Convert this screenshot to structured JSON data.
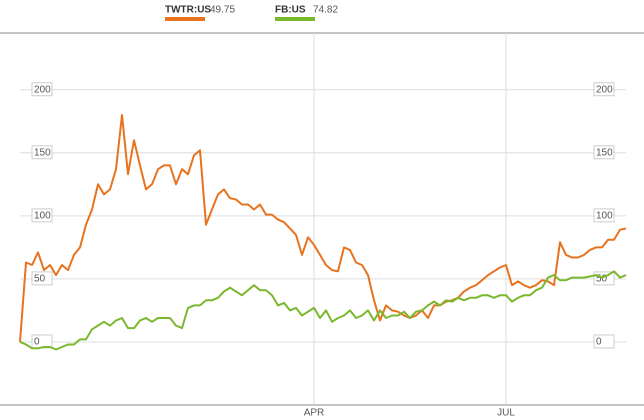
{
  "chart_data": {
    "type": "line",
    "categories": [
      null,
      null,
      null,
      null,
      null,
      null,
      null,
      null,
      null,
      null,
      null,
      null,
      null,
      null,
      null,
      null,
      null,
      null,
      null,
      null,
      null,
      null,
      null,
      null,
      null,
      null,
      null,
      null,
      null,
      null,
      null,
      null,
      null,
      null,
      null,
      null,
      null,
      null,
      null,
      null,
      null,
      null,
      null,
      null,
      null,
      null,
      null,
      null,
      null,
      "APR",
      null,
      null,
      null,
      null,
      null,
      null,
      null,
      null,
      null,
      null,
      null,
      null,
      null,
      null,
      null,
      null,
      null,
      null,
      null,
      null,
      null,
      null,
      null,
      null,
      null,
      null,
      null,
      null,
      null,
      null,
      null,
      "JUL",
      null,
      null,
      null,
      null,
      null,
      null,
      null,
      null,
      null,
      null,
      null,
      null,
      null,
      null,
      null,
      null,
      null,
      null,
      null,
      null
    ],
    "series": [
      {
        "name": "TWTR:US",
        "legend_value": "49.75",
        "color": "#e8731f",
        "values": [
          0,
          63,
          61,
          71,
          57,
          61,
          53,
          61,
          57,
          69,
          75,
          93,
          105,
          125,
          117,
          121,
          137,
          180,
          133,
          160,
          140,
          121,
          125,
          137,
          140,
          140,
          125,
          137,
          133,
          148,
          152,
          93,
          105,
          117,
          121,
          114,
          113,
          109,
          109,
          105,
          109,
          101,
          101,
          97,
          95,
          90,
          85,
          69,
          83,
          77,
          69,
          61,
          57,
          56,
          75,
          73,
          63,
          61,
          53,
          33,
          17,
          29,
          25,
          24,
          21,
          19,
          21,
          25,
          19,
          29,
          29,
          32,
          33,
          35,
          40,
          43,
          45,
          49,
          53,
          56,
          59,
          61,
          45,
          48,
          45,
          43,
          45,
          49,
          48,
          45,
          79,
          69,
          67,
          67,
          69,
          73,
          75,
          75,
          81,
          81,
          89,
          90
        ]
      },
      {
        "name": "FB:US",
        "legend_value": "74.82",
        "color": "#7ab82e",
        "values": [
          0,
          -2,
          -5,
          -5,
          -4,
          -4,
          -6,
          -4,
          -2,
          -2,
          2,
          2,
          10,
          13,
          16,
          13,
          17,
          19,
          11,
          11,
          17,
          19,
          16,
          19,
          19,
          19,
          13,
          11,
          27,
          29,
          29,
          33,
          33,
          35,
          40,
          43,
          40,
          37,
          41,
          45,
          41,
          41,
          37,
          29,
          31,
          25,
          27,
          21,
          24,
          27,
          19,
          25,
          16,
          19,
          21,
          25,
          19,
          21,
          25,
          17,
          25,
          19,
          21,
          21,
          24,
          19,
          24,
          25,
          29,
          32,
          29,
          33,
          32,
          35,
          33,
          35,
          35,
          37,
          37,
          35,
          37,
          37,
          32,
          35,
          37,
          37,
          41,
          43,
          51,
          53,
          49,
          49,
          51,
          51,
          51,
          52,
          53,
          51,
          53,
          56,
          51,
          53
        ]
      }
    ],
    "ylim": [
      -50,
      245
    ],
    "yticks": [
      0,
      50,
      100,
      150,
      200
    ],
    "grid": true
  }
}
